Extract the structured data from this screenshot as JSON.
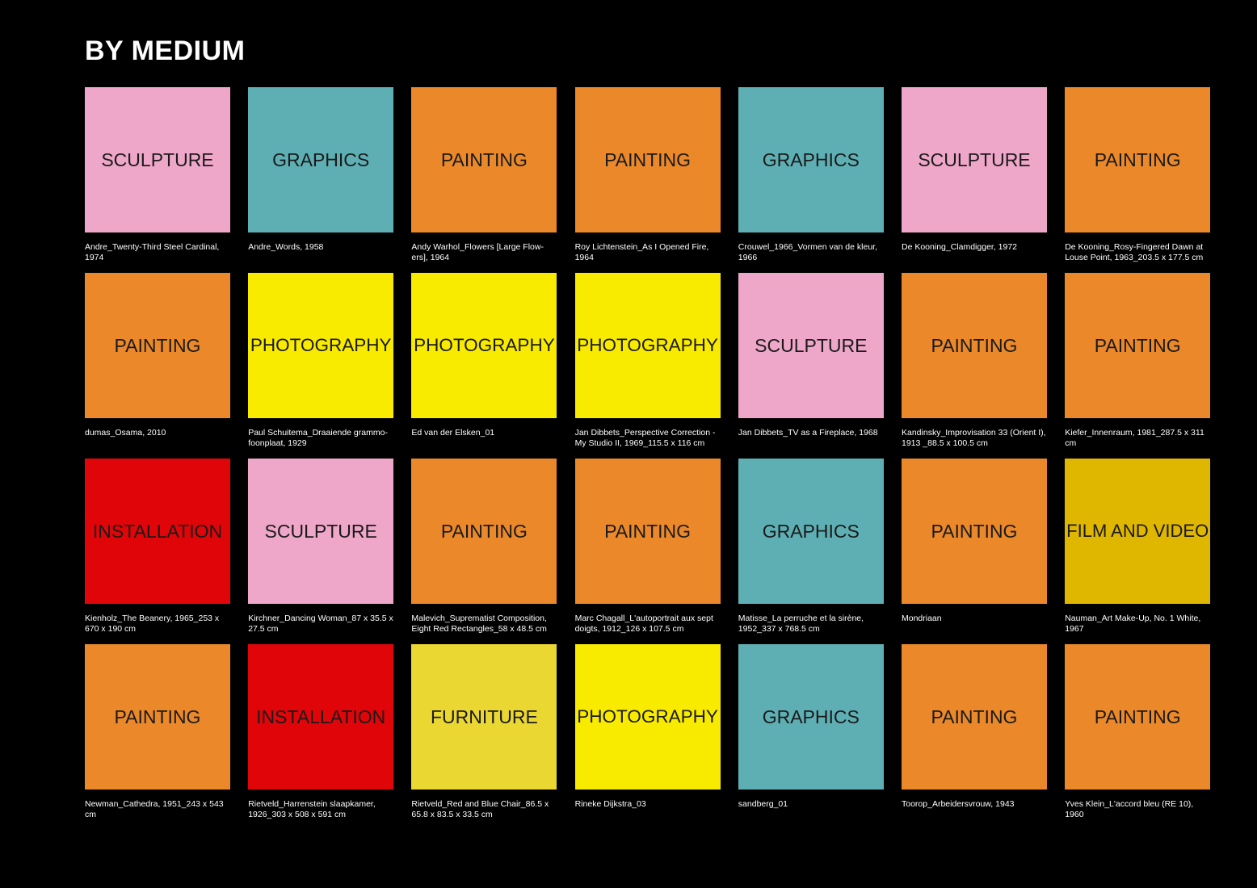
{
  "title": "BY MEDIUM",
  "colors": {
    "SCULPTURE": "#EEA6C9",
    "GRAPHICS": "#5EAFB4",
    "PAINTING": "#EA882A",
    "PHOTOGRAPHY": "#F8EB00",
    "INSTALLATION": "#DF0509",
    "FILM AND VIDEO": "#E0B700",
    "FURNITURE": "#EBD732"
  },
  "tiles": [
    {
      "medium": "SCULPTURE",
      "caption": "Andre_Twenty-Third Steel Cardinal, 1974"
    },
    {
      "medium": "GRAPHICS",
      "caption": "Andre_Words, 1958"
    },
    {
      "medium": "PAINTING",
      "caption": "Andy Warhol_Flowers [Large Flow- ers], 1964"
    },
    {
      "medium": "PAINTING",
      "caption": "Roy Lichtenstein_As I Opened Fire, 1964"
    },
    {
      "medium": "GRAPHICS",
      "caption": "Crouwel_1966_Vormen van de kleur, 1966"
    },
    {
      "medium": "SCULPTURE",
      "caption": "De Kooning_Clamdigger, 1972"
    },
    {
      "medium": "PAINTING",
      "caption": "De Kooning_Rosy-Fingered Dawn at Louse Point, 1963_203.5 x 177.5 cm"
    },
    {
      "medium": "PAINTING",
      "caption": "dumas_Osama, 2010"
    },
    {
      "medium": "PHOTOGRAPHY",
      "caption": "Paul Schuitema_Draaiende grammo- foonplaat, 1929"
    },
    {
      "medium": "PHOTOGRAPHY",
      "caption": "Ed van der Elsken_01"
    },
    {
      "medium": "PHOTOGRAPHY",
      "caption": "Jan Dibbets_Perspective Correction - My Studio II, 1969_115.5 x 116 cm"
    },
    {
      "medium": "SCULPTURE",
      "caption": "Jan Dibbets_TV as a Fireplace, 1968"
    },
    {
      "medium": "PAINTING",
      "caption": "Kandinsky_Improvisation 33 (Orient I), 1913 _88.5 x 100.5 cm"
    },
    {
      "medium": "PAINTING",
      "caption": "Kiefer_Innenraum, 1981_287.5 x 311 cm"
    },
    {
      "medium": "INSTALLATION",
      "caption": "Kienholz_The Beanery, 1965_253 x 670 x 190 cm"
    },
    {
      "medium": "SCULPTURE",
      "caption": "Kirchner_Dancing Woman_87 x 35.5 x 27.5 cm"
    },
    {
      "medium": "PAINTING",
      "caption": "Malevich_Suprematist Composition, Eight Red Rectangles_58 x 48.5 cm"
    },
    {
      "medium": "PAINTING",
      "caption": "Marc Chagall_L'autoportrait aux sept doigts, 1912_126 x 107.5 cm"
    },
    {
      "medium": "GRAPHICS",
      "caption": "Matisse_La perruche et la sirène, 1952_337 x 768.5 cm"
    },
    {
      "medium": "PAINTING",
      "caption": "Mondriaan"
    },
    {
      "medium": "FILM AND VIDEO",
      "caption": "Nauman_Art Make-Up, No. 1 White, 1967"
    },
    {
      "medium": "PAINTING",
      "caption": "Newman_Cathedra, 1951_243 x 543 cm"
    },
    {
      "medium": "INSTALLATION",
      "caption": "Rietveld_Harrenstein slaapkamer, 1926_303 x 508 x 591 cm"
    },
    {
      "medium": "FURNITURE",
      "caption": "Rietveld_Red and Blue Chair_86.5 x 65.8 x 83.5 x 33.5 cm"
    },
    {
      "medium": "PHOTOGRAPHY",
      "caption": "Rineke Dijkstra_03"
    },
    {
      "medium": "GRAPHICS",
      "caption": "sandberg_01"
    },
    {
      "medium": "PAINTING",
      "caption": "Toorop_Arbeidersvrouw, 1943"
    },
    {
      "medium": "PAINTING",
      "caption": "Yves Klein_L'accord bleu (RE 10), 1960"
    }
  ]
}
